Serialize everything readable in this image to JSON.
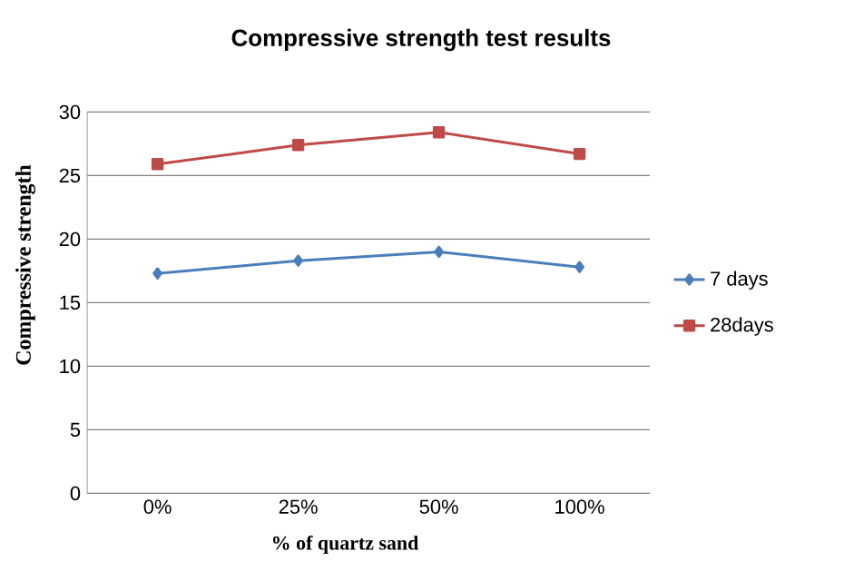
{
  "chart_data": {
    "type": "line",
    "title": "Compressive strength  test  results",
    "xlabel": "% of quartz sand",
    "ylabel": "Compressive strength",
    "categories": [
      "0%",
      "25%",
      "50%",
      "100%"
    ],
    "series": [
      {
        "name": "7 days",
        "color": "#4a7ebb",
        "marker": "diamond",
        "values": [
          17.3,
          18.3,
          19.0,
          17.8
        ]
      },
      {
        "name": "28days",
        "color": "#be4b48",
        "marker": "square",
        "values": [
          25.9,
          27.4,
          28.4,
          26.7
        ]
      }
    ],
    "ylim": [
      0,
      30
    ],
    "yticks": [
      0,
      5,
      10,
      15,
      20,
      25,
      30
    ],
    "grid": "y",
    "legend": "right"
  }
}
